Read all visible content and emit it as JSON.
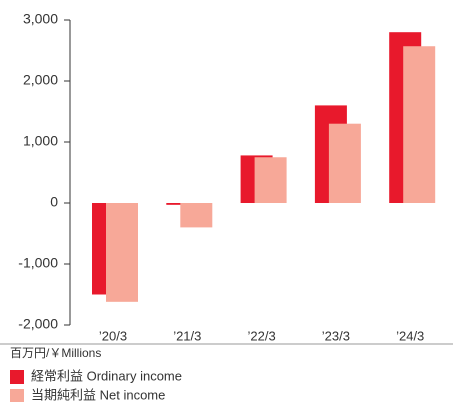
{
  "chart_data": {
    "type": "bar",
    "categories": [
      "’20/3",
      "’21/3",
      "’22/3",
      "’23/3",
      "’24/3"
    ],
    "series": [
      {
        "name": "経常利益 Ordinary income",
        "color": "#e8192c",
        "values": [
          -1500,
          -30,
          780,
          1600,
          2800
        ]
      },
      {
        "name": "当期純利益 Net income",
        "color": "#f7a898",
        "values": [
          -1620,
          -400,
          750,
          1300,
          2570
        ]
      }
    ],
    "unit_label": "百万円/￥Millions",
    "ylim": [
      -2000,
      3000
    ],
    "yticks": [
      {
        "value": -2000,
        "label": "-2,000"
      },
      {
        "value": -1000,
        "label": "-1,000"
      },
      0,
      {
        "value": 1000,
        "label": "1,000"
      },
      {
        "value": 2000,
        "label": "2,000"
      },
      {
        "value": 3000,
        "label": "3,000"
      }
    ],
    "grid": false
  }
}
